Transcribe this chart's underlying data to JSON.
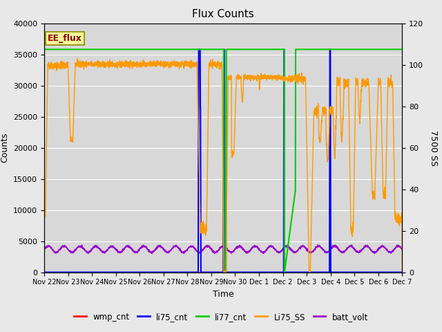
{
  "title": "Flux Counts",
  "ylabel_left": "Counts",
  "ylabel_right": "7500 SS",
  "xlabel": "Time",
  "ylim_left": [
    0,
    40000
  ],
  "ylim_right": [
    0,
    120
  ],
  "fig_bg_color": "#e8e8e8",
  "plot_bg_color": "#d8d8d8",
  "annotation_text": "EE_flux",
  "annotation_bg": "#ffff99",
  "annotation_border": "#8B0000",
  "legend_entries": [
    "wmp_cnt",
    "li75_cnt",
    "li77_cnt",
    "Li75_SS",
    "batt_volt"
  ],
  "legend_colors": [
    "#ff0000",
    "#0000ff",
    "#00cc00",
    "#ff9900",
    "#9900cc"
  ],
  "date_labels": [
    "Nov 22",
    "Nov 23",
    "Nov 24",
    "Nov 25",
    "Nov 26",
    "Nov 27",
    "Nov 28",
    "Nov 29",
    "Nov 30",
    "Dec 1",
    "Dec 2",
    "Dec 3",
    "Dec 4",
    "Dec 5",
    "Dec 6",
    "Dec 7"
  ],
  "yticks_left": [
    0,
    5000,
    10000,
    15000,
    20000,
    25000,
    30000,
    35000,
    40000
  ],
  "yticks_right": [
    0,
    20,
    40,
    60,
    80,
    100,
    120
  ]
}
